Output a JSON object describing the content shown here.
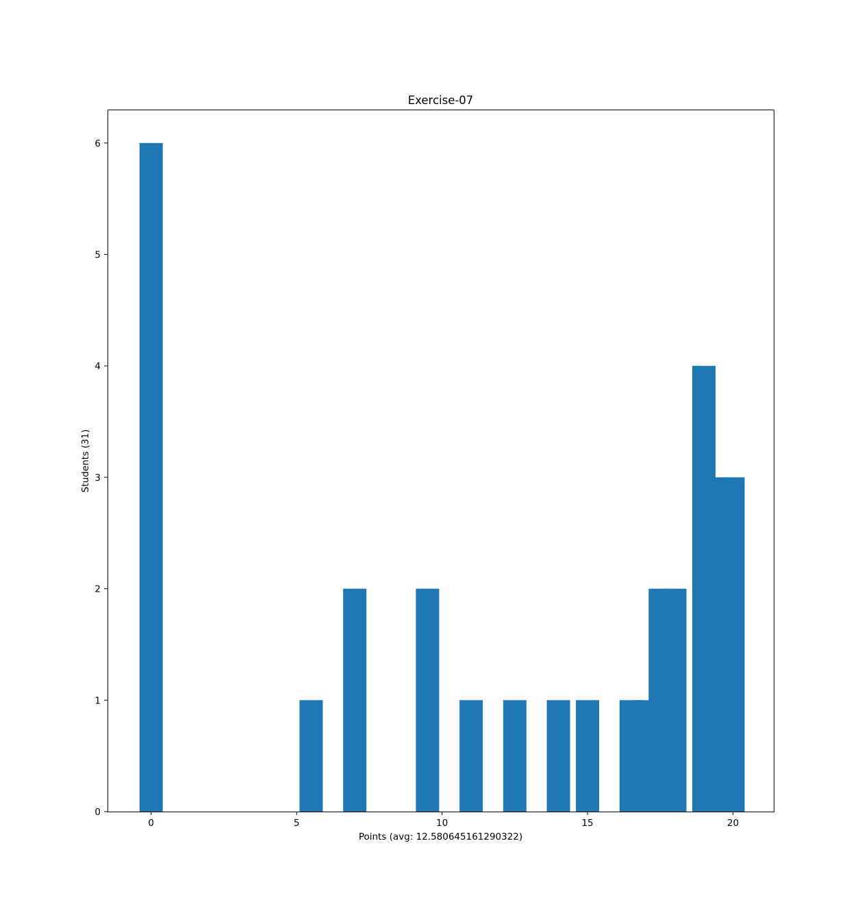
{
  "chart_data": {
    "type": "bar",
    "title": "Exercise-07",
    "xlabel": "Points (avg: 12.580645161290322)",
    "ylabel": "Students (31)",
    "xlim": [
      -1.5,
      21.4
    ],
    "ylim": [
      0,
      6.3
    ],
    "xticks": [
      0,
      5,
      10,
      15,
      20
    ],
    "yticks": [
      0,
      1,
      2,
      3,
      4,
      5,
      6
    ],
    "grid": false,
    "bar_color": "#1f77b4",
    "bars": [
      {
        "x": 0,
        "value": 6,
        "width": 0.8
      },
      {
        "x": 5.5,
        "value": 1,
        "width": 0.8
      },
      {
        "x": 7,
        "value": 2,
        "width": 0.8
      },
      {
        "x": 9.5,
        "value": 2,
        "width": 0.8
      },
      {
        "x": 11,
        "value": 1,
        "width": 0.8
      },
      {
        "x": 12.5,
        "value": 1,
        "width": 0.8
      },
      {
        "x": 14,
        "value": 1,
        "width": 0.8
      },
      {
        "x": 15,
        "value": 1,
        "width": 0.8
      },
      {
        "x": 16.5,
        "value": 1,
        "width": 0.8
      },
      {
        "x": 17,
        "value": 1,
        "width": 0.8
      },
      {
        "x": 17.5,
        "value": 2,
        "width": 0.8
      },
      {
        "x": 18,
        "value": 2,
        "width": 0.8
      },
      {
        "x": 19,
        "value": 4,
        "width": 0.8
      },
      {
        "x": 19.5,
        "value": 3,
        "width": 0.8
      },
      {
        "x": 20,
        "value": 3,
        "width": 0.8
      }
    ]
  }
}
